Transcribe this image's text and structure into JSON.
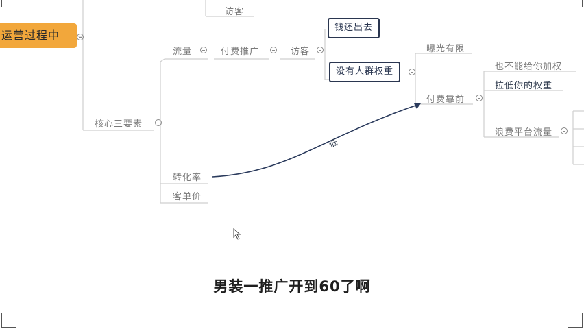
{
  "mindmap": {
    "root": "运营过程中",
    "top_partial": "访客",
    "core": "核心三要素",
    "traffic": "流量",
    "paid_promo": "付费推广",
    "visitor": "访客",
    "money_out": "钱还出去",
    "no_weight": "没有人群权重",
    "exposure": "曝光有限",
    "paid_rely": "付费靠前",
    "no_add_weight": "也不能给你加权",
    "lower_weight": "拉低你的权重",
    "waste_traffic": "浪费平台流量",
    "conversion": "转化率",
    "order_value": "客单价",
    "arrow_note": "低"
  },
  "subtitle": "男装一推广开到60了啊",
  "colors": {
    "root_bg": "#f2a73b",
    "box_border": "#2a3650",
    "line": "#c8c8c8",
    "arrow": "#2a3a5c"
  }
}
